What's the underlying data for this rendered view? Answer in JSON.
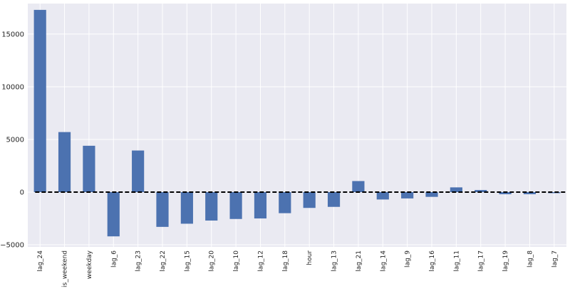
{
  "chart_data": {
    "type": "bar",
    "categories": [
      "lag_24",
      "is_weekend",
      "weekday",
      "lag_6",
      "lag_23",
      "lag_22",
      "lag_15",
      "lag_20",
      "lag_10",
      "lag_12",
      "lag_18",
      "hour",
      "lag_13",
      "lag_21",
      "lag_14",
      "lag_9",
      "lag_16",
      "lag_11",
      "lag_17",
      "lag_19",
      "lag_8",
      "lag_7"
    ],
    "values": [
      17300,
      5700,
      4400,
      -4200,
      3950,
      -3300,
      -3000,
      -2700,
      -2550,
      -2500,
      -2000,
      -1500,
      -1400,
      1050,
      -700,
      -600,
      -450,
      450,
      200,
      -200,
      -200,
      -100
    ],
    "title": "",
    "xlabel": "",
    "ylabel": "",
    "ylim": [
      -5200,
      17900
    ],
    "yticks": [
      -5000,
      0,
      5000,
      10000,
      15000
    ],
    "ytick_labels": [
      "−5000",
      "0",
      "5000",
      "10000",
      "15000"
    ],
    "reference_line": {
      "y": 0,
      "style": "dashed",
      "color": "#000000"
    },
    "grid": true,
    "bar_color": "#4C72B0",
    "background_color": "#EAEAF2"
  }
}
